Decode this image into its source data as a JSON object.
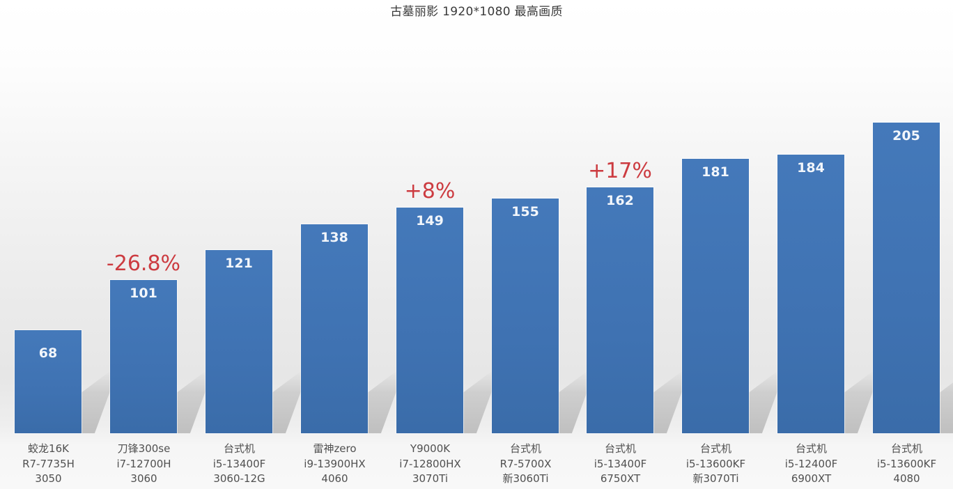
{
  "chart_data": {
    "type": "bar",
    "title": "古墓丽影 1920*1080 最高画质",
    "xlabel": "",
    "ylabel": "",
    "ylim": [
      0,
      210
    ],
    "grid": false,
    "legend": null,
    "bar_color": "#3f72b2",
    "annotation_color": "#cc3b40",
    "categories": [
      [
        "蛟龙16K",
        "R7-7735H",
        "3050"
      ],
      [
        "刀锋300se",
        "i7-12700H",
        "3060"
      ],
      [
        "台式机",
        "i5-13400F",
        "3060-12G"
      ],
      [
        "雷神zero",
        "i9-13900HX",
        "4060"
      ],
      [
        "Y9000K",
        "i7-12800HX",
        "3070Ti"
      ],
      [
        "台式机",
        "R7-5700X",
        "新3060Ti"
      ],
      [
        "台式机",
        "i5-13400F",
        "6750XT"
      ],
      [
        "台式机",
        "i5-13600KF",
        "新3070Ti"
      ],
      [
        "台式机",
        "i5-12400F",
        "6900XT"
      ],
      [
        "台式机",
        "i5-13600KF",
        "4080"
      ]
    ],
    "values": [
      68,
      101,
      121,
      138,
      149,
      155,
      162,
      181,
      184,
      205
    ],
    "annotations": [
      {
        "index": 1,
        "text": "-26.8%"
      },
      {
        "index": 4,
        "text": "+8%"
      },
      {
        "index": 6,
        "text": "+17%"
      }
    ]
  }
}
